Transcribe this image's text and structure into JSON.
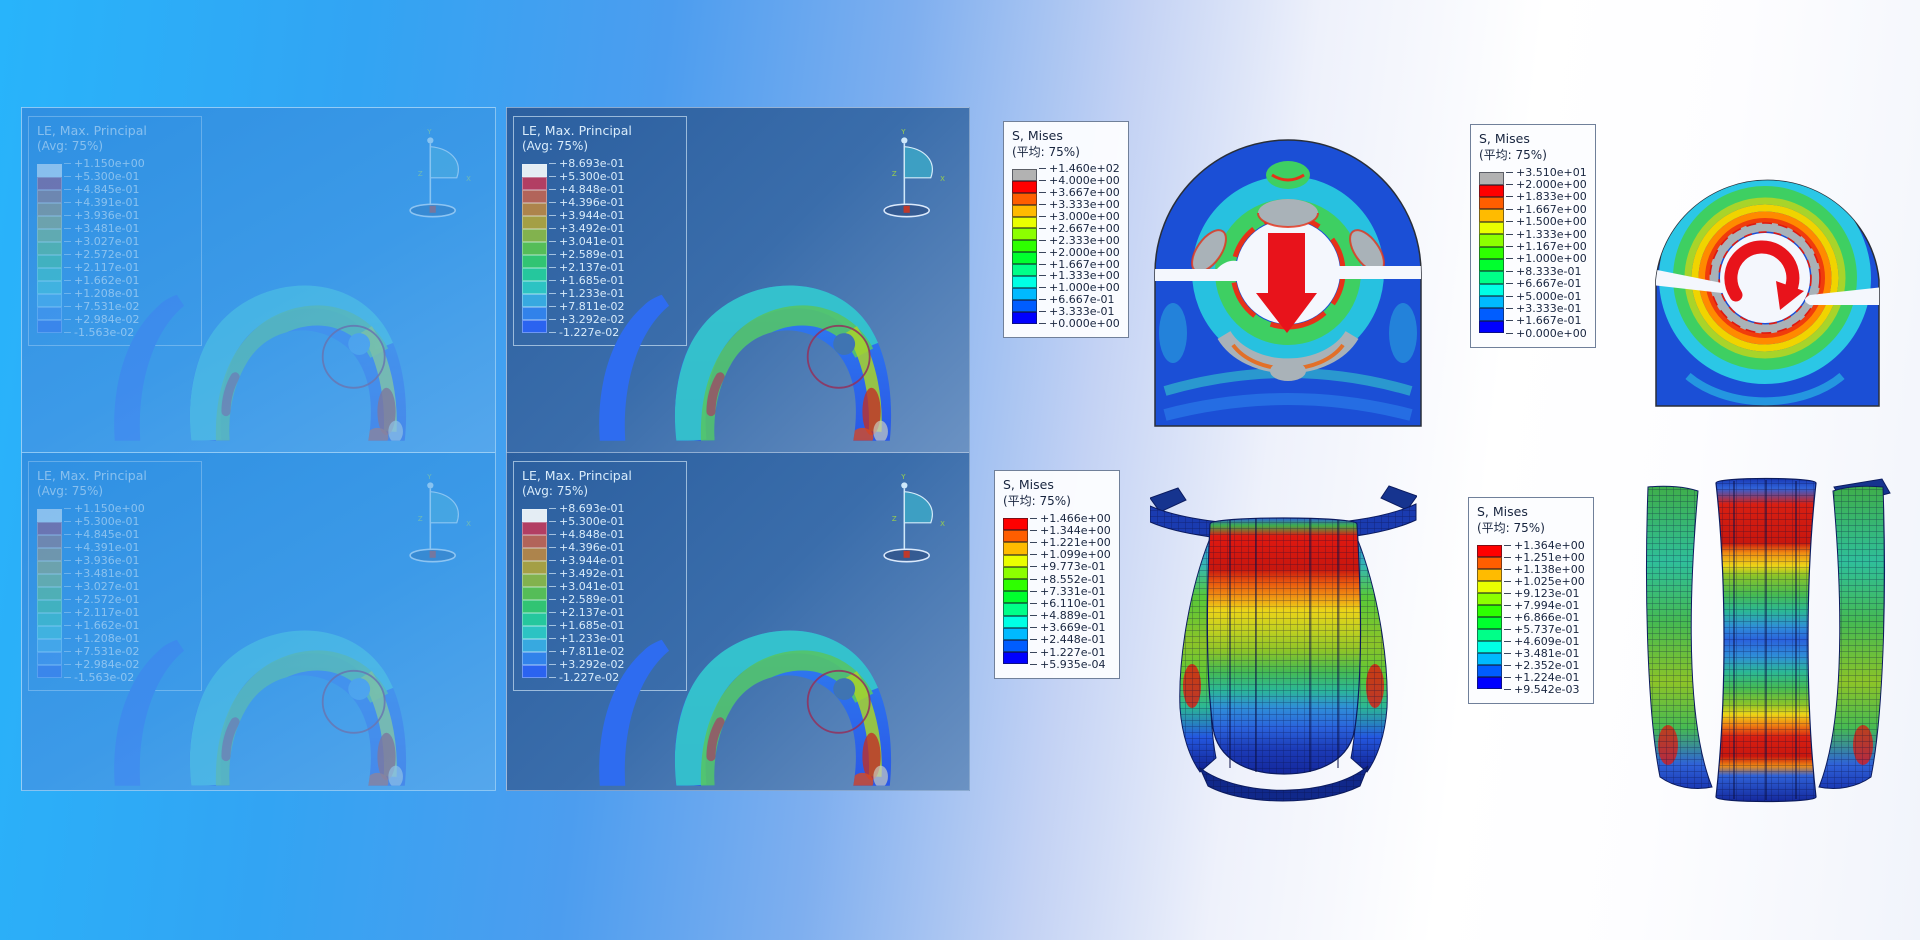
{
  "triad": {
    "x": "X",
    "y": "Y",
    "z": "Z"
  },
  "legends": {
    "le_a": {
      "title": "LE, Max. Principal",
      "subtitle": "(Avg: 75%)",
      "values": [
        "+1.150e+00",
        "+5.300e-01",
        "+4.845e-01",
        "+4.391e-01",
        "+3.936e-01",
        "+3.481e-01",
        "+3.027e-01",
        "+2.572e-01",
        "+2.117e-01",
        "+1.662e-01",
        "+1.208e-01",
        "+7.531e-02",
        "+2.984e-02",
        "-1.563e-02"
      ]
    },
    "le_b": {
      "title": "LE, Max. Principal",
      "subtitle": "(Avg: 75%)",
      "values": [
        "+8.693e-01",
        "+5.300e-01",
        "+4.848e-01",
        "+4.396e-01",
        "+3.944e-01",
        "+3.492e-01",
        "+3.041e-01",
        "+2.589e-01",
        "+2.137e-01",
        "+1.685e-01",
        "+1.233e-01",
        "+7.811e-02",
        "+3.292e-02",
        "-1.227e-02"
      ]
    },
    "le_c": {
      "title": "LE, Max. Principal",
      "subtitle": "(Avg: 75%)",
      "values": [
        "+1.150e+00",
        "+5.300e-01",
        "+4.845e-01",
        "+4.391e-01",
        "+3.936e-01",
        "+3.481e-01",
        "+3.027e-01",
        "+2.572e-01",
        "+2.117e-01",
        "+1.662e-01",
        "+1.208e-01",
        "+7.531e-02",
        "+2.984e-02",
        "-1.563e-02"
      ]
    },
    "le_d": {
      "title": "LE, Max. Principal",
      "subtitle": "(Avg: 75%)",
      "values": [
        "+8.693e-01",
        "+5.300e-01",
        "+4.848e-01",
        "+4.396e-01",
        "+3.944e-01",
        "+3.492e-01",
        "+3.041e-01",
        "+2.589e-01",
        "+2.137e-01",
        "+1.685e-01",
        "+1.233e-01",
        "+7.811e-02",
        "+3.292e-02",
        "-1.227e-02"
      ]
    },
    "mises_1": {
      "title": "S, Mises",
      "subtitle": "(平均: 75%)",
      "values": [
        "+1.460e+02",
        "+4.000e+00",
        "+3.667e+00",
        "+3.333e+00",
        "+3.000e+00",
        "+2.667e+00",
        "+2.333e+00",
        "+2.000e+00",
        "+1.667e+00",
        "+1.333e+00",
        "+1.000e+00",
        "+6.667e-01",
        "+3.333e-01",
        "+0.000e+00"
      ]
    },
    "mises_2": {
      "title": "S, Mises",
      "subtitle": "(平均: 75%)",
      "values": [
        "+3.510e+01",
        "+2.000e+00",
        "+1.833e+00",
        "+1.667e+00",
        "+1.500e+00",
        "+1.333e+00",
        "+1.167e+00",
        "+1.000e+00",
        "+8.333e-01",
        "+6.667e-01",
        "+5.000e-01",
        "+3.333e-01",
        "+1.667e-01",
        "+0.000e+00"
      ]
    },
    "mises_3": {
      "title": "S, Mises",
      "subtitle": "(平均: 75%)",
      "values": [
        "+1.466e+00",
        "+1.344e+00",
        "+1.221e+00",
        "+1.099e+00",
        "+9.773e-01",
        "+8.552e-01",
        "+7.331e-01",
        "+6.110e-01",
        "+4.889e-01",
        "+3.669e-01",
        "+2.448e-01",
        "+1.227e-01",
        "+5.935e-04"
      ]
    },
    "mises_4": {
      "title": "S, Mises",
      "subtitle": "(平均: 75%)",
      "values": [
        "+1.364e+00",
        "+1.251e+00",
        "+1.138e+00",
        "+1.025e+00",
        "+9.123e-01",
        "+7.994e-01",
        "+6.866e-01",
        "+5.737e-01",
        "+4.609e-01",
        "+3.481e-01",
        "+2.352e-01",
        "+1.224e-01",
        "+9.542e-03"
      ]
    }
  },
  "colors": {
    "rainbow": [
      "#ff0000",
      "#ff5e00",
      "#ffbb00",
      "#eaff00",
      "#8cff00",
      "#2eff00",
      "#00ff2e",
      "#00ff88",
      "#00ffe5",
      "#00baff",
      "#005dff",
      "#0000ff"
    ],
    "rainbow_overflow_gray": [
      "#b2b2b2",
      "#ff0000",
      "#ff5e00",
      "#ffbb00",
      "#eaff00",
      "#8cff00",
      "#2eff00",
      "#00ff2e",
      "#00ff88",
      "#00ffe5",
      "#00baff",
      "#005dff",
      "#0000ff"
    ],
    "le_ramp": [
      "#e4edf4",
      "#b23e63",
      "#b2645a",
      "#ad844c",
      "#a49f45",
      "#82b24e",
      "#55bd58",
      "#31c473",
      "#25c79d",
      "#2cc3c3",
      "#37a9e0",
      "#3182ea",
      "#2b63f0"
    ],
    "arrow_red": "#e8131b",
    "legend_text_dark": "#18253f",
    "legend_text_light": "#d9ecfb",
    "background_left": "#28b4fb",
    "background_right": "#ffffff",
    "panel_dark": "#2d66a6",
    "panel_light": "#3194e5"
  }
}
